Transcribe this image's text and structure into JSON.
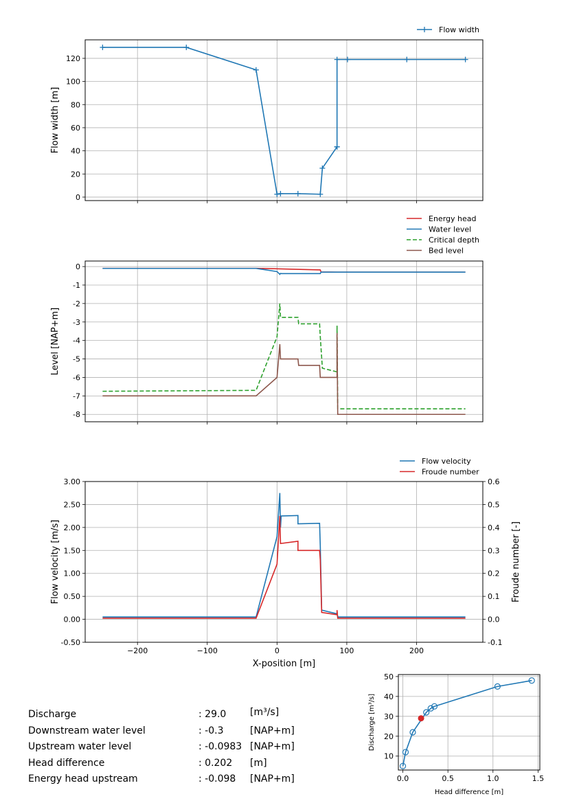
{
  "colors": {
    "blue": "#1f77b4",
    "red": "#d62728",
    "green": "#2ca02c",
    "brown": "#8c564b",
    "grid": "#b0b0b0"
  },
  "chart_data": [
    {
      "type": "line",
      "xlim": [
        -275,
        295
      ],
      "ylim": [
        -3,
        136
      ],
      "ylabel": "Flow width [m]",
      "xlabel": "",
      "yticks": [
        0,
        20,
        40,
        60,
        80,
        100,
        120
      ],
      "xticks": [
        -200,
        -100,
        0,
        100,
        200
      ],
      "grid": true,
      "legend": "top-right",
      "series": [
        {
          "name": "Flow width",
          "color": "#1f77b4",
          "marker": "+",
          "x": [
            -250,
            -130,
            -30,
            0,
            5,
            30,
            62,
            65,
            86,
            86,
            86,
            101,
            186,
            270
          ],
          "y": [
            129.5,
            129.5,
            110,
            2.5,
            3,
            3,
            2.5,
            25,
            43.5,
            43.5,
            119,
            119,
            119,
            119
          ]
        }
      ]
    },
    {
      "type": "line",
      "xlim": [
        -275,
        295
      ],
      "ylim": [
        -8.4,
        0.3
      ],
      "ylabel": "Level [NAP+m]",
      "xlabel": "",
      "yticks": [
        0,
        -1,
        -2,
        -3,
        -4,
        -5,
        -6,
        -7,
        -8
      ],
      "xticks": [
        -200,
        -100,
        0,
        100,
        200
      ],
      "grid": true,
      "legend": "top-right",
      "series": [
        {
          "name": "Energy head",
          "color": "#d62728",
          "dash": "",
          "x": [
            -250,
            -30,
            0,
            62,
            63,
            86,
            270
          ],
          "y": [
            -0.098,
            -0.098,
            -0.12,
            -0.18,
            -0.29,
            -0.3,
            -0.3
          ]
        },
        {
          "name": "Water level",
          "color": "#1f77b4",
          "dash": "",
          "x": [
            -250,
            -30,
            0,
            4,
            5,
            6,
            30,
            62,
            63,
            86,
            270
          ],
          "y": [
            -0.1,
            -0.1,
            -0.27,
            -0.42,
            -0.37,
            -0.38,
            -0.38,
            -0.38,
            -0.3,
            -0.3,
            -0.3
          ]
        },
        {
          "name": "Critical depth",
          "color": "#2ca02c",
          "dash": "6,3",
          "x": [
            -250,
            -30,
            0,
            4,
            5,
            6,
            30,
            31,
            61,
            62,
            65,
            86,
            86,
            87,
            270
          ],
          "y": [
            -6.75,
            -6.7,
            -3.8,
            -2.0,
            -2.75,
            -2.75,
            -2.75,
            -3.1,
            -3.1,
            -3.8,
            -5.5,
            -5.7,
            -3.2,
            -7.7,
            -7.7
          ]
        },
        {
          "name": "Bed level",
          "color": "#8c564b",
          "dash": "",
          "x": [
            -250,
            -30,
            0,
            4,
            5,
            6,
            30,
            31,
            61,
            62,
            86,
            86,
            87,
            270
          ],
          "y": [
            -7.0,
            -7.0,
            -6.0,
            -4.2,
            -5.0,
            -5.0,
            -5.0,
            -5.35,
            -5.35,
            -6.0,
            -6.0,
            -3.6,
            -8.0,
            -8.0
          ]
        }
      ]
    },
    {
      "type": "line",
      "xlim": [
        -275,
        295
      ],
      "ylim": [
        -0.5,
        3.0
      ],
      "y2lim": [
        -0.1,
        0.6
      ],
      "ylabel": "Flow velocity [m/s]",
      "y2label": "Froude number [-]",
      "xlabel": "X-position [m]",
      "yticks": [
        "3.00",
        "2.50",
        "2.00",
        "1.50",
        "1.00",
        "0.50",
        "0.00",
        "-0.50"
      ],
      "y2ticks": [
        "0.6",
        "0.5",
        "0.4",
        "0.3",
        "0.2",
        "0.1",
        "0.0",
        "-0.1"
      ],
      "xticks": [
        "−200",
        "−100",
        "0",
        "100",
        "200"
      ],
      "grid": true,
      "legend": "top-right",
      "series": [
        {
          "name": "Flow velocity",
          "color": "#1f77b4",
          "axis": "left",
          "x": [
            -250,
            -30,
            0,
            4,
            5,
            6,
            30,
            30,
            61,
            62,
            64,
            86,
            86,
            87,
            270
          ],
          "y": [
            0.05,
            0.05,
            1.8,
            2.75,
            2.0,
            2.25,
            2.26,
            2.08,
            2.09,
            1.6,
            0.2,
            0.12,
            0.15,
            0.05,
            0.05
          ]
        },
        {
          "name": "Froude number",
          "color": "#d62728",
          "axis": "right",
          "x": [
            -250,
            -30,
            0,
            4,
            5,
            30,
            30,
            61,
            62,
            64,
            86,
            86,
            87,
            270
          ],
          "y": [
            0.005,
            0.005,
            0.24,
            0.45,
            0.33,
            0.34,
            0.3,
            0.3,
            0.26,
            0.03,
            0.02,
            0.04,
            0.005,
            0.005
          ]
        }
      ]
    },
    {
      "type": "line",
      "xlim": [
        -0.05,
        1.52
      ],
      "ylim": [
        3,
        51
      ],
      "xlabel": "Head difference [m]",
      "ylabel": "Discharge [m³/s]",
      "xticks": [
        "0.0",
        "0.5",
        "1.0",
        "1.5"
      ],
      "yticks": [
        "10",
        "20",
        "30",
        "40",
        "50"
      ],
      "grid": true,
      "series": [
        {
          "color": "#1f77b4",
          "marker": "o",
          "x": [
            0.0,
            0.03,
            0.11,
            0.26,
            0.31,
            0.35,
            1.05,
            1.43
          ],
          "y": [
            5,
            12,
            22,
            32,
            34,
            35,
            45,
            48
          ]
        }
      ],
      "highlight": {
        "x": 0.202,
        "y": 29.0,
        "color": "#d62728"
      }
    }
  ],
  "info": {
    "rows": [
      {
        "label": "Discharge",
        "value": ": 29.0",
        "unit": "[m³/s]"
      },
      {
        "label": "Downstream water level",
        "value": ": -0.3",
        "unit": "[NAP+m]"
      },
      {
        "label": "Upstream water level",
        "value": ": -0.0983",
        "unit": "[NAP+m]"
      },
      {
        "label": "Head difference",
        "value": ": 0.202",
        "unit": "[m]"
      },
      {
        "label": "Energy head upstream",
        "value": ": -0.098",
        "unit": "[NAP+m]"
      }
    ]
  }
}
